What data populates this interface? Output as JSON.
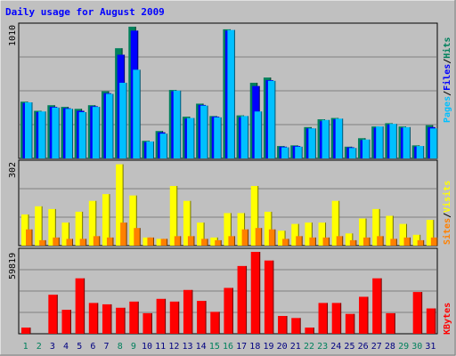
{
  "title": "Daily usage for August 2009",
  "colors": {
    "background": "#c0c0c0",
    "panel": "#c0c0c0",
    "grid": "#808080",
    "hits": "#00805c",
    "files": "#0000ff",
    "pages": "#00c0ff",
    "visits": "#ff8000",
    "sites": "#ffff00",
    "kbytes": "#ff0000",
    "title": "#0000ff",
    "day_normal": "#000080",
    "day_weekend": "#00805c"
  },
  "chart_data": [
    {
      "type": "bar",
      "name": "hits-files-pages",
      "ymax_label": "1010",
      "ylim": [
        0,
        1010
      ],
      "legend": [
        {
          "label": "Pages",
          "color": "#00c0ff"
        },
        {
          "label": "/",
          "color": "#000000"
        },
        {
          "label": "Files",
          "color": "#0000ff"
        },
        {
          "label": "/",
          "color": "#000000"
        },
        {
          "label": "Hits",
          "color": "#00805c"
        }
      ],
      "categories": [
        "1",
        "2",
        "3",
        "4",
        "5",
        "6",
        "7",
        "8",
        "9",
        "10",
        "11",
        "12",
        "13",
        "14",
        "15",
        "16",
        "17",
        "18",
        "19",
        "20",
        "21",
        "22",
        "23",
        "24",
        "25",
        "26",
        "27",
        "28",
        "29",
        "30",
        "31"
      ],
      "series": [
        {
          "name": "Hits",
          "values": [
            435,
            365,
            408,
            395,
            380,
            408,
            515,
            845,
            1010,
            135,
            210,
            525,
            320,
            420,
            325,
            990,
            330,
            580,
            620,
            95,
            100,
            240,
            300,
            310,
            90,
            155,
            245,
            270,
            245,
            100,
            255
          ]
        },
        {
          "name": "Files",
          "values": [
            425,
            355,
            395,
            385,
            365,
            400,
            500,
            795,
            980,
            125,
            200,
            515,
            305,
            410,
            320,
            980,
            315,
            555,
            600,
            90,
            95,
            230,
            285,
            300,
            85,
            140,
            235,
            260,
            235,
            90,
            240
          ]
        },
        {
          "name": "Pages",
          "values": [
            430,
            360,
            390,
            380,
            355,
            395,
            495,
            580,
            680,
            130,
            190,
            520,
            310,
            405,
            315,
            985,
            325,
            360,
            595,
            85,
            90,
            230,
            295,
            305,
            80,
            145,
            245,
            265,
            240,
            95,
            230
          ]
        }
      ]
    },
    {
      "type": "bar",
      "name": "visits-sites",
      "ymax_label": "302",
      "ylim": [
        0,
        302
      ],
      "legend": [
        {
          "label": "Sites",
          "color": "#ff8000"
        },
        {
          "label": "/",
          "color": "#000000"
        },
        {
          "label": "Visits",
          "color": "#ffff00"
        }
      ],
      "categories": [
        "1",
        "2",
        "3",
        "4",
        "5",
        "6",
        "7",
        "8",
        "9",
        "10",
        "11",
        "12",
        "13",
        "14",
        "15",
        "16",
        "17",
        "18",
        "19",
        "20",
        "21",
        "22",
        "23",
        "24",
        "25",
        "26",
        "27",
        "28",
        "29",
        "30",
        "31"
      ],
      "series": [
        {
          "name": "Visits",
          "values": [
            115,
            145,
            135,
            85,
            125,
            165,
            190,
            300,
            185,
            30,
            25,
            220,
            165,
            85,
            30,
            120,
            120,
            220,
            125,
            55,
            80,
            85,
            85,
            165,
            45,
            100,
            135,
            110,
            80,
            40,
            95
          ]
        },
        {
          "name": "Sites",
          "values": [
            60,
            20,
            30,
            25,
            25,
            35,
            30,
            85,
            65,
            30,
            25,
            35,
            35,
            25,
            20,
            35,
            60,
            65,
            60,
            25,
            35,
            30,
            30,
            35,
            20,
            30,
            35,
            25,
            30,
            20,
            30
          ]
        }
      ]
    },
    {
      "type": "bar",
      "name": "kbytes",
      "ymax_label": "59819",
      "ylim": [
        0,
        59819
      ],
      "legend": [
        {
          "label": "KBytes",
          "color": "#ff0000"
        }
      ],
      "categories": [
        "1",
        "2",
        "3",
        "4",
        "5",
        "6",
        "7",
        "8",
        "9",
        "10",
        "11",
        "12",
        "13",
        "14",
        "15",
        "16",
        "17",
        "18",
        "19",
        "20",
        "21",
        "22",
        "23",
        "24",
        "25",
        "26",
        "27",
        "28",
        "29",
        "30",
        "31"
      ],
      "series": [
        {
          "name": "KBytes",
          "values": [
            4500,
            0,
            28500,
            17500,
            40500,
            22500,
            21500,
            19000,
            23500,
            15000,
            25500,
            23500,
            32000,
            24000,
            16000,
            33500,
            49500,
            59819,
            53500,
            13000,
            11500,
            4500,
            22500,
            22500,
            14500,
            27000,
            40500,
            15000,
            0,
            30500,
            18500
          ]
        }
      ]
    }
  ]
}
